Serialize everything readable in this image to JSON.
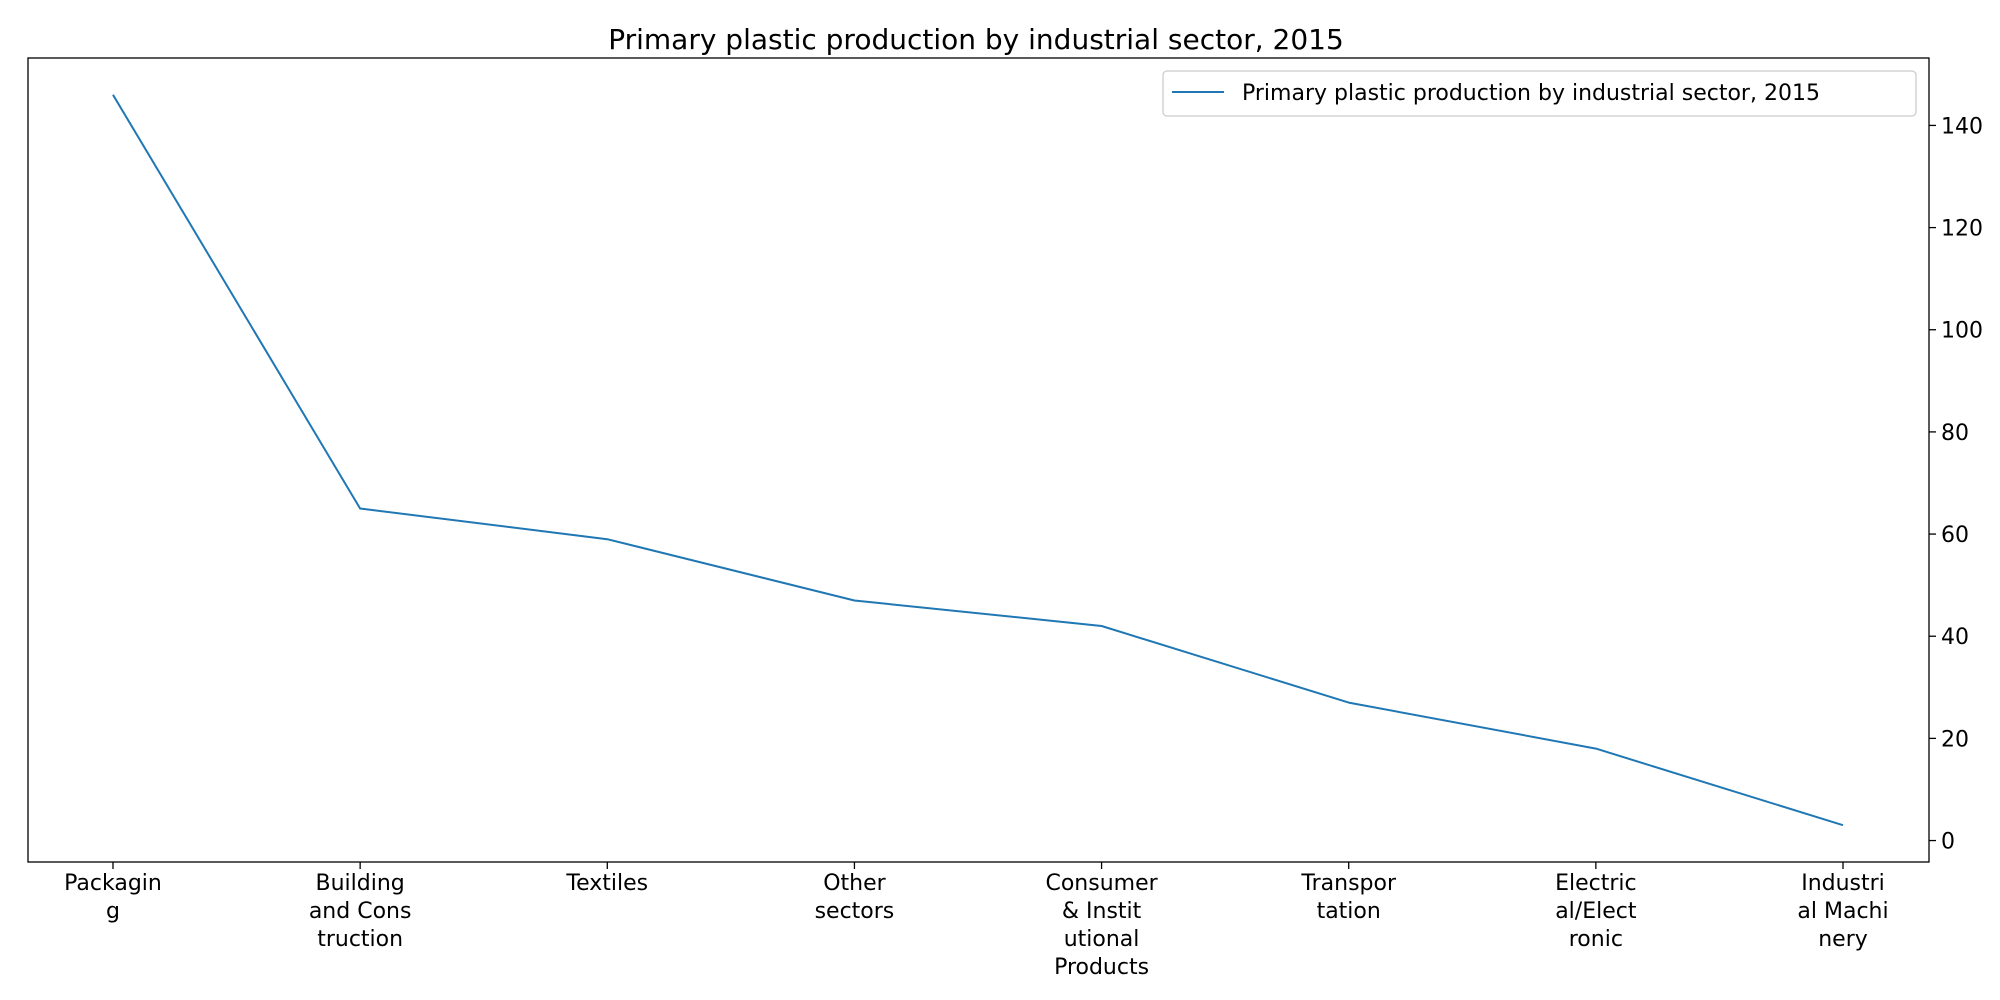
{
  "chart_data": {
    "type": "line",
    "title": "Primary plastic production by industrial sector, 2015",
    "xlabel": "",
    "ylabel": "",
    "categories": [
      [
        "Packagin",
        "g"
      ],
      [
        "Building",
        "and Cons",
        "truction"
      ],
      [
        "Textiles"
      ],
      [
        "Other",
        "sectors"
      ],
      [
        "Consumer",
        "& Instit",
        "utional",
        "Products"
      ],
      [
        "Transpor",
        "tation"
      ],
      [
        "Electric",
        "al/Elect",
        "ronic"
      ],
      [
        "Industri",
        "al Machi",
        "nery"
      ]
    ],
    "series": [
      {
        "name": "Primary plastic production by industrial sector, 2015",
        "color": "#1f77b4",
        "values": [
          146,
          65,
          59,
          47,
          42,
          27,
          18,
          3
        ]
      }
    ],
    "ylim": [
      -4.2,
      153.2
    ],
    "yticks": [
      0,
      20,
      40,
      60,
      80,
      100,
      120,
      140
    ],
    "y_axis_side": "right",
    "grid": false,
    "legend_position": "top-right"
  }
}
